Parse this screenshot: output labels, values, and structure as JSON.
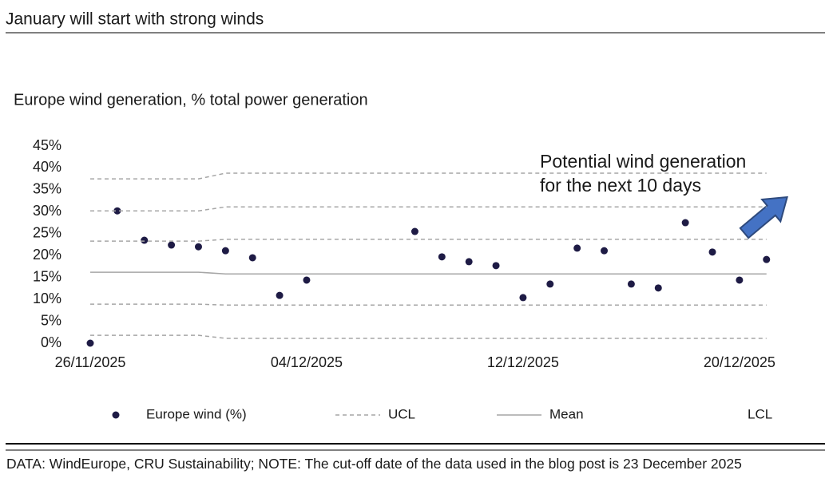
{
  "chart_data": {
    "type": "scatter",
    "title": "January will start with strong winds",
    "subtitle": "Europe wind generation, % total power generation",
    "annotation": [
      "Potential wind generation",
      "for the next 10 days"
    ],
    "note": "DATA: WindEurope, CRU Sustainability; NOTE: The cut-off date of the data used in the blog post is 23 December 2025",
    "categories": [
      "26/11/2025",
      null,
      null,
      null,
      null,
      null,
      null,
      null,
      "04/12/2025",
      null,
      null,
      null,
      null,
      null,
      null,
      null,
      "12/12/2025",
      null,
      null,
      null,
      null,
      null,
      null,
      null,
      "20/12/2025",
      null
    ],
    "ylim": [
      0,
      45
    ],
    "yticks": [
      {
        "value": 0,
        "label": "0%"
      },
      {
        "value": 5,
        "label": "5%"
      },
      {
        "value": 10,
        "label": "10%"
      },
      {
        "value": 15,
        "label": "15%"
      },
      {
        "value": 20,
        "label": "20%"
      },
      {
        "value": 25,
        "label": "25%"
      },
      {
        "value": 30,
        "label": "30%"
      },
      {
        "value": 35,
        "label": "35%"
      },
      {
        "value": 40,
        "label": "40%"
      },
      {
        "value": 45,
        "label": "45%"
      }
    ],
    "grid": false,
    "series": [
      {
        "name": "Europe wind (%)",
        "style": "dots",
        "color": "#1e1b45",
        "values": [
          0,
          30.2,
          23.5,
          22.4,
          22.0,
          21.1,
          19.5,
          10.9,
          14.4,
          null,
          null,
          null,
          25.5,
          19.7,
          18.6,
          17.7,
          10.4,
          13.5,
          21.7,
          21.1,
          13.5,
          12.6,
          27.5,
          20.8,
          14.4,
          19.1
        ]
      },
      {
        "name": "UCL",
        "style": "dashed",
        "color": "#a6a6a6",
        "lines": [
          [
            37.5,
            37.5,
            37.5,
            37.5,
            37.5,
            38.8,
            38.8,
            38.8,
            38.8,
            38.8,
            38.8,
            38.8,
            38.8,
            38.8,
            38.8,
            38.8,
            38.8,
            38.8,
            38.8,
            38.8,
            38.8,
            38.8,
            38.8,
            38.8,
            38.8,
            38.8
          ],
          [
            30.2,
            30.2,
            30.2,
            30.2,
            30.2,
            31.1,
            31.1,
            31.1,
            31.1,
            31.1,
            31.1,
            31.1,
            31.1,
            31.1,
            31.1,
            31.1,
            31.1,
            31.1,
            31.1,
            31.1,
            31.1,
            31.1,
            31.1,
            31.1,
            31.1,
            31.1
          ],
          [
            23.3,
            23.3,
            23.3,
            23.3,
            23.3,
            23.7,
            23.7,
            23.7,
            23.7,
            23.7,
            23.7,
            23.7,
            23.7,
            23.7,
            23.7,
            23.7,
            23.7,
            23.7,
            23.7,
            23.7,
            23.7,
            23.7,
            23.7,
            23.7,
            23.7,
            23.7
          ]
        ]
      },
      {
        "name": "Mean",
        "style": "solid",
        "color": "#a6a6a6",
        "values": [
          16.2,
          16.2,
          16.2,
          16.2,
          16.2,
          15.8,
          15.8,
          15.8,
          15.8,
          15.8,
          15.8,
          15.8,
          15.8,
          15.8,
          15.8,
          15.8,
          15.8,
          15.8,
          15.8,
          15.8,
          15.8,
          15.8,
          15.8,
          15.8,
          15.8,
          15.8
        ]
      },
      {
        "name": "LCL",
        "style": "dashed",
        "color": "#a6a6a6",
        "legend_marker": false,
        "lines": [
          [
            8.9,
            8.9,
            8.9,
            8.9,
            8.9,
            8.7,
            8.7,
            8.7,
            8.7,
            8.7,
            8.7,
            8.7,
            8.7,
            8.7,
            8.7,
            8.7,
            8.7,
            8.7,
            8.7,
            8.7,
            8.7,
            8.7,
            8.7,
            8.7,
            8.7,
            8.7
          ],
          [
            1.8,
            1.8,
            1.8,
            1.8,
            1.8,
            1.1,
            1.1,
            1.1,
            1.1,
            1.1,
            1.1,
            1.1,
            1.1,
            1.1,
            1.1,
            1.1,
            1.1,
            1.1,
            1.1,
            1.1,
            1.1,
            1.1,
            1.1,
            1.1,
            1.1,
            1.1
          ]
        ]
      }
    ]
  }
}
